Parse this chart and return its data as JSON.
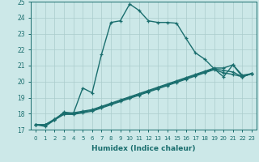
{
  "xlabel": "Humidex (Indice chaleur)",
  "bg_color": "#cce8e8",
  "grid_color": "#aacccc",
  "line_color": "#1a6e6e",
  "xlim": [
    -0.5,
    23.5
  ],
  "ylim": [
    17,
    25
  ],
  "xticks": [
    0,
    1,
    2,
    3,
    4,
    5,
    6,
    7,
    8,
    9,
    10,
    11,
    12,
    13,
    14,
    15,
    16,
    17,
    18,
    19,
    20,
    21,
    22,
    23
  ],
  "yticks": [
    17,
    18,
    19,
    20,
    21,
    22,
    23,
    24,
    25
  ],
  "series": [
    [
      17.3,
      17.2,
      17.6,
      18.1,
      18.0,
      19.6,
      19.3,
      21.7,
      23.7,
      23.8,
      24.85,
      24.45,
      23.8,
      23.7,
      23.7,
      23.65,
      22.7,
      21.8,
      21.4,
      20.8,
      20.3,
      21.05,
      20.3,
      20.5
    ],
    [
      17.3,
      17.3,
      17.65,
      18.05,
      18.05,
      18.15,
      18.25,
      18.45,
      18.65,
      18.85,
      19.05,
      19.25,
      19.45,
      19.65,
      19.85,
      20.05,
      20.25,
      20.45,
      20.65,
      20.85,
      20.85,
      21.05,
      20.4,
      20.5
    ],
    [
      17.3,
      17.3,
      17.65,
      18.0,
      18.0,
      18.1,
      18.2,
      18.4,
      18.6,
      18.8,
      19.0,
      19.2,
      19.4,
      19.6,
      19.8,
      20.0,
      20.2,
      20.4,
      20.6,
      20.8,
      20.7,
      20.6,
      20.3,
      20.5
    ],
    [
      17.3,
      17.3,
      17.6,
      17.95,
      17.95,
      18.05,
      18.15,
      18.35,
      18.55,
      18.75,
      18.95,
      19.15,
      19.35,
      19.55,
      19.75,
      19.95,
      20.15,
      20.35,
      20.55,
      20.75,
      20.55,
      20.45,
      20.3,
      20.5
    ]
  ]
}
